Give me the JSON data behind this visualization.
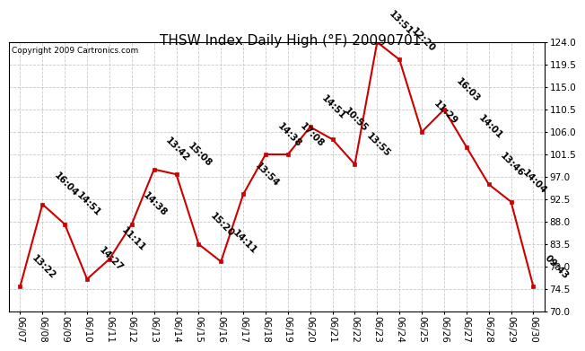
{
  "title": "THSW Index Daily High (°F) 20090701",
  "copyright": "Copyright 2009 Cartronics.com",
  "dates": [
    "06/07",
    "06/08",
    "06/09",
    "06/10",
    "06/11",
    "06/12",
    "06/13",
    "06/14",
    "06/15",
    "06/16",
    "06/17",
    "06/18",
    "06/19",
    "06/20",
    "06/21",
    "06/22",
    "06/23",
    "06/24",
    "06/25",
    "06/26",
    "06/27",
    "06/28",
    "06/29",
    "06/30"
  ],
  "values": [
    75.0,
    91.5,
    87.5,
    76.5,
    80.5,
    87.5,
    98.5,
    97.5,
    83.5,
    80.0,
    93.5,
    101.5,
    101.5,
    107.0,
    104.5,
    99.5,
    124.0,
    120.5,
    106.0,
    110.5,
    103.0,
    95.5,
    92.0,
    75.0
  ],
  "times": [
    "13:22",
    "16:04",
    "14:51",
    "14:27",
    "11:11",
    "14:38",
    "13:42",
    "15:08",
    "15:20",
    "14:11",
    "13:54",
    "14:38",
    "17:08",
    "14:51",
    "10:55",
    "13:55",
    "13:51",
    "12:20",
    "11:29",
    "16:03",
    "14:01",
    "13:46",
    "14:04",
    "09:43"
  ],
  "ylim": [
    70.0,
    124.0
  ],
  "yticks": [
    70.0,
    74.5,
    79.0,
    83.5,
    88.0,
    92.5,
    97.0,
    101.5,
    106.0,
    110.5,
    115.0,
    119.5,
    124.0
  ],
  "line_color": "#cc0000",
  "marker_color": "#cc0000",
  "background_color": "#ffffff",
  "grid_color": "#bbbbbb",
  "title_fontsize": 11,
  "tick_fontsize": 7.5,
  "annotation_fontsize": 7.5,
  "copyright_fontsize": 6.5
}
